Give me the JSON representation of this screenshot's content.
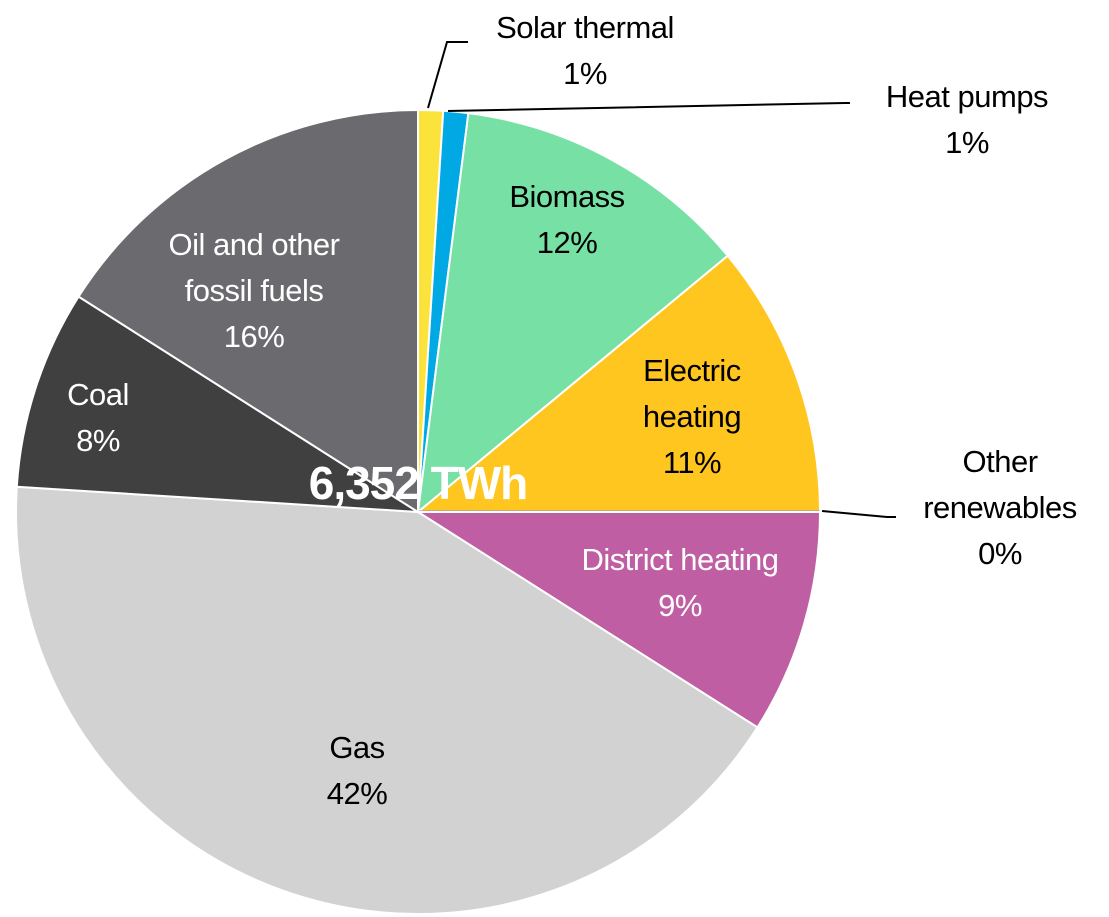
{
  "chart_data": {
    "type": "pie",
    "categories": [
      "Solar thermal",
      "Heat pumps",
      "Biomass",
      "Electric heating",
      "Other renewables",
      "District heating",
      "Gas",
      "Coal",
      "Oil and other fossil fuels"
    ],
    "values": [
      1,
      1,
      12,
      11,
      0,
      9,
      42,
      8,
      16
    ],
    "value_labels": [
      "1%",
      "1%",
      "12%",
      "11%",
      "0%",
      "9%",
      "42%",
      "8%",
      "16%"
    ],
    "colors": [
      "#fbe33b",
      "#00a9e4",
      "#77e0a4",
      "#ffc620",
      "#9d8fd2",
      "#bf5ea3",
      "#d2d2d2",
      "#404040",
      "#6b6b6f"
    ],
    "center_label": "6,352 TWh"
  }
}
